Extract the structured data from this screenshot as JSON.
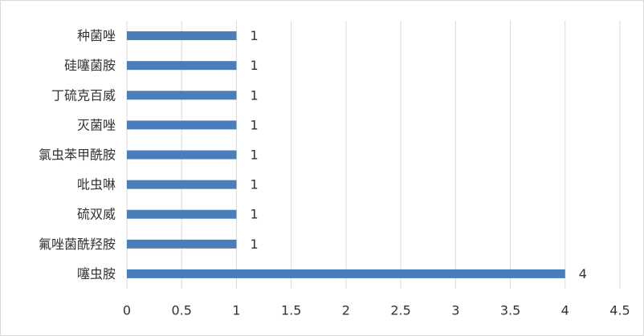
{
  "chart_data": {
    "type": "bar",
    "orientation": "horizontal",
    "categories": [
      "种菌唑",
      "硅噻菌胺",
      "丁硫克百威",
      "灭菌唑",
      "氯虫苯甲酰胺",
      "吡虫啉",
      "硫双威",
      "氟唑菌酰羟胺",
      "噻虫胺"
    ],
    "values": [
      1,
      1,
      1,
      1,
      1,
      1,
      1,
      1,
      4
    ],
    "color": "#4a7ebb",
    "xlim": [
      0,
      4.5
    ],
    "xticks": [
      0,
      0.5,
      1,
      1.5,
      2,
      2.5,
      3,
      3.5,
      4,
      4.5
    ],
    "grid": true
  }
}
